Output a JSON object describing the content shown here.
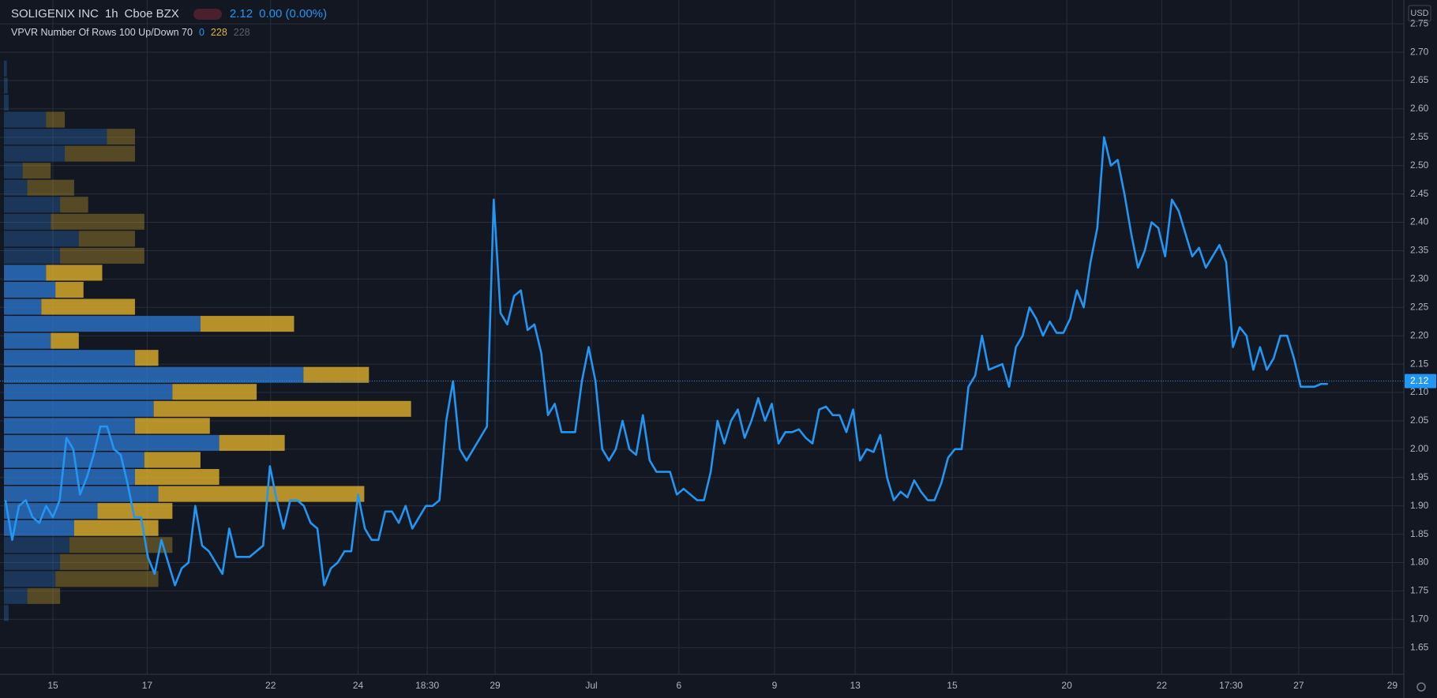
{
  "chart_data": {
    "type": "line",
    "symbol": "SOLIGENIX INC",
    "interval": "1h",
    "exchange": "Cboe BZX",
    "last_price": 2.12,
    "change": "0.00 (0.00%)",
    "indicator": "VPVR Number Of Rows 100 Up/Down 70",
    "indicator_values": [
      "0",
      "228",
      "228"
    ],
    "currency": "USD",
    "color": "#2196f3",
    "grid": true,
    "values": [
      1.91,
      1.84,
      1.9,
      1.91,
      1.88,
      1.87,
      1.9,
      1.88,
      1.91,
      2.02,
      2.0,
      1.92,
      1.95,
      1.99,
      2.04,
      2.04,
      2.0,
      1.99,
      1.94,
      1.88,
      1.88,
      1.81,
      1.78,
      1.84,
      1.8,
      1.76,
      1.79,
      1.8,
      1.9,
      1.83,
      1.82,
      1.8,
      1.78,
      1.86,
      1.81,
      1.81,
      1.81,
      1.82,
      1.83,
      1.97,
      1.91,
      1.86,
      1.91,
      1.91,
      1.9,
      1.87,
      1.86,
      1.76,
      1.79,
      1.8,
      1.82,
      1.82,
      1.92,
      1.86,
      1.84,
      1.84,
      1.89,
      1.89,
      1.87,
      1.9,
      1.86,
      1.88,
      1.9,
      1.9,
      1.91,
      2.05,
      2.12,
      2.0,
      1.98,
      2.0,
      2.02,
      2.04,
      2.44,
      2.24,
      2.22,
      2.27,
      2.28,
      2.21,
      2.22,
      2.17,
      2.06,
      2.08,
      2.03,
      2.03,
      2.03,
      2.12,
      2.18,
      2.12,
      2.0,
      1.98,
      2.0,
      2.05,
      2.0,
      1.99,
      2.06,
      1.98,
      1.96,
      1.96,
      1.96,
      1.92,
      1.93,
      1.92,
      1.91,
      1.91,
      1.96,
      2.05,
      2.01,
      2.05,
      2.07,
      2.02,
      2.05,
      2.09,
      2.05,
      2.08,
      2.01,
      2.03,
      2.03,
      2.035,
      2.02,
      2.01,
      2.07,
      2.075,
      2.06,
      2.06,
      2.03,
      2.07,
      1.98,
      2.0,
      1.995,
      2.025,
      1.95,
      1.91,
      1.925,
      1.915,
      1.945,
      1.925,
      1.91,
      1.91,
      1.94,
      1.985,
      2.0,
      2.0,
      2.11,
      2.13,
      2.2,
      2.14,
      2.145,
      2.15,
      2.11,
      2.18,
      2.2,
      2.25,
      2.23,
      2.2,
      2.225,
      2.205,
      2.205,
      2.23,
      2.28,
      2.25,
      2.33,
      2.39,
      2.55,
      2.5,
      2.51,
      2.45,
      2.38,
      2.32,
      2.35,
      2.4,
      2.39,
      2.34,
      2.44,
      2.42,
      2.38,
      2.34,
      2.355,
      2.32,
      2.34,
      2.36,
      2.33,
      2.18,
      2.215,
      2.2,
      2.14,
      2.18,
      2.14,
      2.16,
      2.2,
      2.2,
      2.16,
      2.11,
      2.11,
      2.11,
      2.115,
      2.115
    ],
    "xlim": [
      -0.8,
      206.2
    ],
    "xticks": [
      {
        "value": 7.0,
        "label": "15"
      },
      {
        "value": 20.9,
        "label": "17"
      },
      {
        "value": 39.1,
        "label": "22"
      },
      {
        "value": 52.0,
        "label": "24"
      },
      {
        "value": 62.2,
        "label": "18:30"
      },
      {
        "value": 72.2,
        "label": "29"
      },
      {
        "value": 86.4,
        "label": "Jul"
      },
      {
        "value": 99.3,
        "label": "6"
      },
      {
        "value": 113.4,
        "label": "9"
      },
      {
        "value": 125.3,
        "label": "13"
      },
      {
        "value": 139.6,
        "label": "15"
      },
      {
        "value": 156.5,
        "label": "20"
      },
      {
        "value": 170.5,
        "label": "22"
      },
      {
        "value": 180.7,
        "label": "17:30"
      },
      {
        "value": 190.7,
        "label": "27"
      },
      {
        "value": 204.5,
        "label": "29"
      }
    ],
    "ylim": [
      1.603,
      2.792
    ],
    "yticks": [
      {
        "value": 1.65,
        "label": "1.65"
      },
      {
        "value": 1.7,
        "label": "1.70"
      },
      {
        "value": 1.75,
        "label": "1.75"
      },
      {
        "value": 1.8,
        "label": "1.80"
      },
      {
        "value": 1.85,
        "label": "1.85"
      },
      {
        "value": 1.9,
        "label": "1.90"
      },
      {
        "value": 1.95,
        "label": "1.95"
      },
      {
        "value": 2.0,
        "label": "2.00"
      },
      {
        "value": 2.05,
        "label": "2.05"
      },
      {
        "value": 2.1,
        "label": "2.10"
      },
      {
        "value": 2.15,
        "label": "2.15"
      },
      {
        "value": 2.2,
        "label": "2.20"
      },
      {
        "value": 2.25,
        "label": "2.25"
      },
      {
        "value": 2.3,
        "label": "2.30"
      },
      {
        "value": 2.35,
        "label": "2.35"
      },
      {
        "value": 2.4,
        "label": "2.40"
      },
      {
        "value": 2.45,
        "label": "2.45"
      },
      {
        "value": 2.5,
        "label": "2.50"
      },
      {
        "value": 2.55,
        "label": "2.55"
      },
      {
        "value": 2.6,
        "label": "2.60"
      },
      {
        "value": 2.65,
        "label": "2.65"
      },
      {
        "value": 2.7,
        "label": "2.70"
      },
      {
        "value": 2.75,
        "label": "2.75"
      }
    ],
    "volume_profile": {
      "row_height": 0.03,
      "prices": [
        1.71,
        1.74,
        1.77,
        1.8,
        1.83,
        1.86,
        1.89,
        1.92,
        1.95,
        1.98,
        2.01,
        2.04,
        2.07,
        2.1,
        2.13,
        2.16,
        2.19,
        2.22,
        2.25,
        2.28,
        2.31,
        2.34,
        2.37,
        2.4,
        2.43,
        2.46,
        2.49,
        2.52,
        2.55,
        2.58,
        2.61,
        2.64,
        2.67
      ],
      "up": [
        5,
        25,
        55,
        60,
        70,
        75,
        100,
        165,
        140,
        150,
        230,
        140,
        160,
        180,
        320,
        140,
        50,
        210,
        40,
        55,
        45,
        60,
        80,
        50,
        60,
        25,
        20,
        65,
        110,
        45,
        5,
        4,
        3
      ],
      "down": [
        0,
        35,
        110,
        95,
        110,
        90,
        80,
        220,
        90,
        60,
        70,
        80,
        275,
        90,
        70,
        25,
        30,
        100,
        100,
        30,
        60,
        90,
        60,
        100,
        30,
        50,
        30,
        75,
        30,
        20,
        0,
        0,
        0
      ],
      "value_area": [
        1.855,
        2.325
      ],
      "up_color": "#2a6fc0",
      "down_color": "#d4a72c"
    }
  }
}
